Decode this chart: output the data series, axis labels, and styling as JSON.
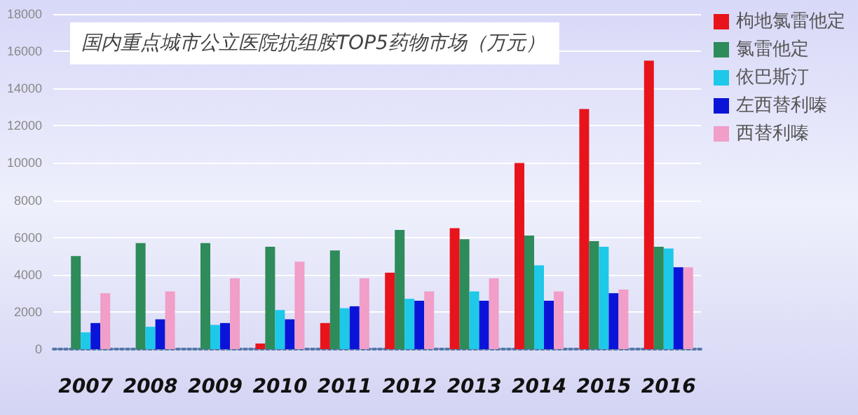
{
  "chart_data": {
    "type": "bar",
    "title": "国内重点城市公立医院抗组胺TOP5药物市场（万元）",
    "categories": [
      "2007",
      "2008",
      "2009",
      "2010",
      "2011",
      "2012",
      "2013",
      "2014",
      "2015",
      "2016"
    ],
    "series": [
      {
        "name": "枸地氯雷他定",
        "color": "#e8141b",
        "values": [
          null,
          null,
          null,
          300,
          1400,
          4100,
          6500,
          10000,
          12900,
          15500
        ]
      },
      {
        "name": "氯雷他定",
        "color": "#2e8b5a",
        "values": [
          5000,
          5700,
          5700,
          5500,
          5300,
          6400,
          5900,
          6100,
          5800,
          5500
        ]
      },
      {
        "name": "依巴斯汀",
        "color": "#1ec8e8",
        "values": [
          900,
          1200,
          1300,
          2100,
          2200,
          2700,
          3100,
          4500,
          5500,
          5400
        ]
      },
      {
        "name": "左西替利嗪",
        "color": "#0a14d8",
        "values": [
          1400,
          1600,
          1400,
          1600,
          2300,
          2600,
          2600,
          2600,
          3000,
          4400
        ]
      },
      {
        "name": "西替利嗪",
        "color": "#f19ec8",
        "values": [
          3000,
          3100,
          3800,
          4700,
          3800,
          3100,
          3800,
          3100,
          3200,
          4400
        ]
      }
    ],
    "ylim": [
      0,
      18000
    ],
    "yticks": [
      0,
      2000,
      4000,
      6000,
      8000,
      10000,
      12000,
      14000,
      16000,
      18000
    ],
    "grid": "y",
    "legend": "top right"
  }
}
